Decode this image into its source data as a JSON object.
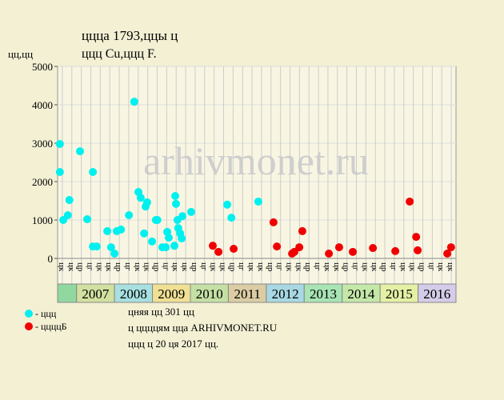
{
  "chart_data": {
    "type": "scatter",
    "title": "ццца 1793,ццы ц",
    "subtitle": "ццц Cu,ццц F.",
    "y_label": "цц,цц",
    "watermark": "arhivmonet.ru",
    "notes": [
      "цняя цц 301 цц",
      "ц ццццям цца ARHIVMONET.RU",
      "ццц ц 20 ця 2017 цц."
    ],
    "xlim": [
      2006.5,
      2017.0
    ],
    "ylim": [
      0,
      5000
    ],
    "yticks": [
      0,
      1000,
      2000,
      3000,
      4000,
      5000
    ],
    "xticks": [
      {
        "value": 2006.625,
        "label": "цк"
      },
      {
        "value": 2006.875,
        "label": "цк"
      },
      {
        "value": 2007.125,
        "label": "цр"
      },
      {
        "value": 2007.375,
        "label": "цг"
      },
      {
        "value": 2007.625,
        "label": "цк"
      },
      {
        "value": 2007.875,
        "label": "цк"
      },
      {
        "value": 2008.125,
        "label": "цр"
      },
      {
        "value": 2008.375,
        "label": "цг"
      },
      {
        "value": 2008.625,
        "label": "цк"
      },
      {
        "value": 2008.875,
        "label": "цк"
      },
      {
        "value": 2009.125,
        "label": "цр"
      },
      {
        "value": 2009.375,
        "label": "цг"
      },
      {
        "value": 2009.625,
        "label": "цк"
      },
      {
        "value": 2009.875,
        "label": "цк"
      },
      {
        "value": 2010.125,
        "label": "цр"
      },
      {
        "value": 2010.375,
        "label": "цг"
      },
      {
        "value": 2010.625,
        "label": "цк"
      },
      {
        "value": 2010.875,
        "label": "цк"
      },
      {
        "value": 2011.125,
        "label": "цр"
      },
      {
        "value": 2011.375,
        "label": "цг"
      },
      {
        "value": 2011.625,
        "label": "цк"
      },
      {
        "value": 2011.875,
        "label": "цк"
      },
      {
        "value": 2012.125,
        "label": "цр"
      },
      {
        "value": 2012.375,
        "label": "цг"
      },
      {
        "value": 2012.625,
        "label": "цк"
      },
      {
        "value": 2012.875,
        "label": "цк"
      },
      {
        "value": 2013.125,
        "label": "цр"
      },
      {
        "value": 2013.375,
        "label": "цг"
      },
      {
        "value": 2013.625,
        "label": "цк"
      },
      {
        "value": 2013.875,
        "label": "цк"
      },
      {
        "value": 2014.125,
        "label": "цр"
      },
      {
        "value": 2014.375,
        "label": "цг"
      },
      {
        "value": 2014.625,
        "label": "цк"
      },
      {
        "value": 2014.875,
        "label": "цк"
      },
      {
        "value": 2015.125,
        "label": "цр"
      },
      {
        "value": 2015.375,
        "label": "цг"
      },
      {
        "value": 2015.625,
        "label": "цк"
      },
      {
        "value": 2015.875,
        "label": "цк"
      },
      {
        "value": 2016.125,
        "label": "цр"
      },
      {
        "value": 2016.375,
        "label": "цг"
      },
      {
        "value": 2016.625,
        "label": "цк"
      },
      {
        "value": 2016.875,
        "label": "цк"
      }
    ],
    "years": [
      2007,
      2008,
      2009,
      2010,
      2011,
      2012,
      2013,
      2014,
      2015,
      2016
    ],
    "year_colors": [
      "#d2e0a0",
      "#a8e0e0",
      "#f0e094",
      "#c4e0a4",
      "#dccca4",
      "#a8d8e4",
      "#a8e4b4",
      "#c4e8a8",
      "#e4f0a4",
      "#d4cce8"
    ],
    "series": [
      {
        "name": "- ццц",
        "color": "#00f0f0",
        "x": [
          2006.56,
          2006.56,
          2006.65,
          2006.77,
          2006.81,
          2007.09,
          2007.28,
          2007.43,
          2007.43,
          2007.53,
          2007.81,
          2007.91,
          2008.0,
          2008.06,
          2008.17,
          2008.38,
          2008.52,
          2008.63,
          2008.69,
          2008.78,
          2008.82,
          2008.86,
          2008.99,
          2009.09,
          2009.13,
          2009.26,
          2009.35,
          2009.39,
          2009.43,
          2009.58,
          2009.6,
          2009.62,
          2009.66,
          2009.68,
          2009.73,
          2009.77,
          2009.79,
          2010.02,
          2010.97,
          2011.08,
          2011.79
        ],
        "values": [
          2980,
          2250,
          1000,
          1125,
          1520,
          2790,
          1020,
          2250,
          310,
          310,
          710,
          290,
          125,
          710,
          750,
          1125,
          4080,
          1730,
          1580,
          650,
          1350,
          1460,
          440,
          1000,
          1000,
          290,
          290,
          690,
          540,
          330,
          1625,
          1420,
          1000,
          790,
          650,
          520,
          1100,
          1210,
          1400,
          1060,
          1480
        ]
      },
      {
        "name": "- ццццБ",
        "color": "#f00000",
        "x": [
          2010.59,
          2010.74,
          2011.14,
          2012.19,
          2012.28,
          2012.68,
          2012.74,
          2012.87,
          2012.95,
          2013.65,
          2013.92,
          2014.28,
          2014.81,
          2015.4,
          2015.78,
          2015.95,
          2015.99,
          2016.77,
          2016.87
        ],
        "values": [
          330,
          170,
          250,
          940,
          310,
          125,
          170,
          290,
          710,
          125,
          290,
          170,
          270,
          190,
          1480,
          560,
          210,
          125,
          290
        ]
      }
    ]
  }
}
